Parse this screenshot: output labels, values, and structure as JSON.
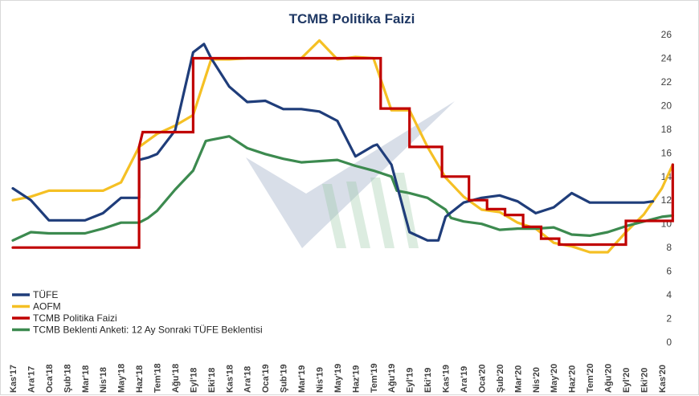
{
  "chart_data": {
    "type": "line",
    "title": "TCMB Politika Faizi",
    "xlabel": "",
    "ylabel": "",
    "ylim": [
      0,
      26
    ],
    "yticks": [
      "0",
      "2",
      "4",
      "6",
      "8",
      "10",
      "12",
      "14",
      "16",
      "18",
      "20",
      "22",
      "24",
      "26"
    ],
    "grid": false,
    "legend_position": "bottom-left",
    "categories": [
      "Kas'17",
      "Ara'17",
      "Oca'18",
      "Şub'18",
      "Mar'18",
      "Nis'18",
      "May'18",
      "Haz'18",
      "Tem'18",
      "Ağu'18",
      "Eyl'18",
      "Eki'18",
      "Kas'18",
      "Ara'18",
      "Oca'19",
      "Şub'19",
      "Mar'19",
      "Nis'19",
      "May'19",
      "Haz'19",
      "Tem'19",
      "Ağu'19",
      "Eyl'19",
      "Eki'19",
      "Kas'19",
      "Ara'19",
      "Oca'20",
      "Şub'20",
      "Mar'20",
      "Nis'20",
      "May'20",
      "Haz'20",
      "Tem'20",
      "Ağu'20",
      "Eyl'20",
      "Eki'20",
      "Kas'20"
    ],
    "series": [
      {
        "name": "TÜFE",
        "color": "#1f3d7a",
        "step": false,
        "points": [
          [
            0,
            13.0
          ],
          [
            1,
            12.0
          ],
          [
            2,
            10.3
          ],
          [
            3,
            10.3
          ],
          [
            4,
            10.3
          ],
          [
            5,
            10.9
          ],
          [
            6,
            12.2
          ],
          [
            7,
            12.2
          ],
          [
            7,
            15.4
          ],
          [
            7.5,
            15.6
          ],
          [
            8,
            15.9
          ],
          [
            9,
            17.9
          ],
          [
            10,
            24.5
          ],
          [
            10.6,
            25.2
          ],
          [
            11,
            24.0
          ],
          [
            12,
            21.6
          ],
          [
            13,
            20.3
          ],
          [
            14,
            20.4
          ],
          [
            15,
            19.7
          ],
          [
            16,
            19.7
          ],
          [
            17,
            19.5
          ],
          [
            18,
            18.7
          ],
          [
            19,
            15.7
          ],
          [
            20,
            16.6
          ],
          [
            20.2,
            16.7
          ],
          [
            21,
            15.0
          ],
          [
            22,
            9.3
          ],
          [
            23,
            8.6
          ],
          [
            23.6,
            8.6
          ],
          [
            24,
            10.6
          ],
          [
            25,
            11.8
          ],
          [
            26,
            12.2
          ],
          [
            27,
            12.4
          ],
          [
            28,
            11.9
          ],
          [
            29,
            10.9
          ],
          [
            30,
            11.4
          ],
          [
            31,
            12.6
          ],
          [
            32,
            11.8
          ],
          [
            33,
            11.8
          ],
          [
            34,
            11.8
          ],
          [
            35,
            11.8
          ],
          [
            35.5,
            11.9
          ]
        ]
      },
      {
        "name": "AOFM",
        "color": "#f5c024",
        "step": false,
        "points": [
          [
            0,
            12.0
          ],
          [
            1,
            12.3
          ],
          [
            2,
            12.8
          ],
          [
            3,
            12.8
          ],
          [
            4,
            12.8
          ],
          [
            5,
            12.8
          ],
          [
            6,
            13.5
          ],
          [
            7,
            16.5
          ],
          [
            8,
            17.6
          ],
          [
            9,
            18.3
          ],
          [
            10,
            19.2
          ],
          [
            11,
            23.9
          ],
          [
            12,
            23.9
          ],
          [
            13,
            24.0
          ],
          [
            14,
            24.0
          ],
          [
            15,
            24.0
          ],
          [
            16,
            24.0
          ],
          [
            17,
            25.5
          ],
          [
            18,
            23.9
          ],
          [
            19,
            24.1
          ],
          [
            20,
            24.0
          ],
          [
            21,
            19.6
          ],
          [
            22,
            19.6
          ],
          [
            23,
            16.5
          ],
          [
            24,
            13.9
          ],
          [
            25,
            12.3
          ],
          [
            26,
            11.2
          ],
          [
            27,
            11.0
          ],
          [
            28,
            10.1
          ],
          [
            29,
            9.6
          ],
          [
            30,
            8.4
          ],
          [
            31,
            8.1
          ],
          [
            32,
            7.6
          ],
          [
            33,
            7.6
          ],
          [
            34,
            9.3
          ],
          [
            35,
            10.8
          ],
          [
            36,
            13.0
          ],
          [
            36.6,
            15.0
          ]
        ]
      },
      {
        "name": "TCMB Politika Faizi",
        "color": "#c00000",
        "step": true,
        "points": [
          [
            0,
            8.0
          ],
          [
            7,
            8.0
          ],
          [
            7,
            16.5
          ],
          [
            7.2,
            17.75
          ],
          [
            10,
            17.75
          ],
          [
            10,
            24.0
          ],
          [
            20.4,
            24.0
          ],
          [
            20.4,
            19.75
          ],
          [
            22,
            19.75
          ],
          [
            22,
            16.5
          ],
          [
            23.8,
            16.5
          ],
          [
            23.8,
            14.0
          ],
          [
            25.3,
            14.0
          ],
          [
            25.3,
            12.0
          ],
          [
            26.3,
            12.0
          ],
          [
            26.3,
            11.25
          ],
          [
            27.3,
            11.25
          ],
          [
            27.3,
            10.75
          ],
          [
            28.3,
            10.75
          ],
          [
            28.3,
            9.75
          ],
          [
            29.3,
            9.75
          ],
          [
            29.3,
            8.75
          ],
          [
            30.3,
            8.75
          ],
          [
            30.3,
            8.25
          ],
          [
            34,
            8.25
          ],
          [
            34,
            10.25
          ],
          [
            36.6,
            10.25
          ],
          [
            36.6,
            15.0
          ]
        ]
      },
      {
        "name": "TCMB Beklenti Anketi: 12 Ay Sonraki TÜFE Beklentisi",
        "color": "#3c8a4f",
        "step": false,
        "points": [
          [
            0,
            8.6
          ],
          [
            1,
            9.3
          ],
          [
            2,
            9.2
          ],
          [
            3,
            9.2
          ],
          [
            4,
            9.2
          ],
          [
            5,
            9.6
          ],
          [
            6,
            10.1
          ],
          [
            7,
            10.1
          ],
          [
            7.5,
            10.5
          ],
          [
            8,
            11.1
          ],
          [
            9,
            12.9
          ],
          [
            10,
            14.5
          ],
          [
            10.7,
            17.0
          ],
          [
            11,
            17.1
          ],
          [
            12,
            17.4
          ],
          [
            13,
            16.4
          ],
          [
            14,
            15.9
          ],
          [
            15,
            15.5
          ],
          [
            16,
            15.2
          ],
          [
            17,
            15.3
          ],
          [
            18,
            15.4
          ],
          [
            19,
            14.9
          ],
          [
            20,
            14.5
          ],
          [
            21,
            14.0
          ],
          [
            21.3,
            12.8
          ],
          [
            22,
            12.6
          ],
          [
            23,
            12.2
          ],
          [
            24,
            11.2
          ],
          [
            24.3,
            10.5
          ],
          [
            25,
            10.2
          ],
          [
            26,
            10.0
          ],
          [
            27,
            9.5
          ],
          [
            28,
            9.6
          ],
          [
            29,
            9.6
          ],
          [
            30,
            9.7
          ],
          [
            31,
            9.1
          ],
          [
            32,
            9.0
          ],
          [
            33,
            9.3
          ],
          [
            34,
            9.8
          ],
          [
            35,
            10.2
          ],
          [
            36,
            10.6
          ],
          [
            36.6,
            10.7
          ]
        ]
      }
    ]
  }
}
